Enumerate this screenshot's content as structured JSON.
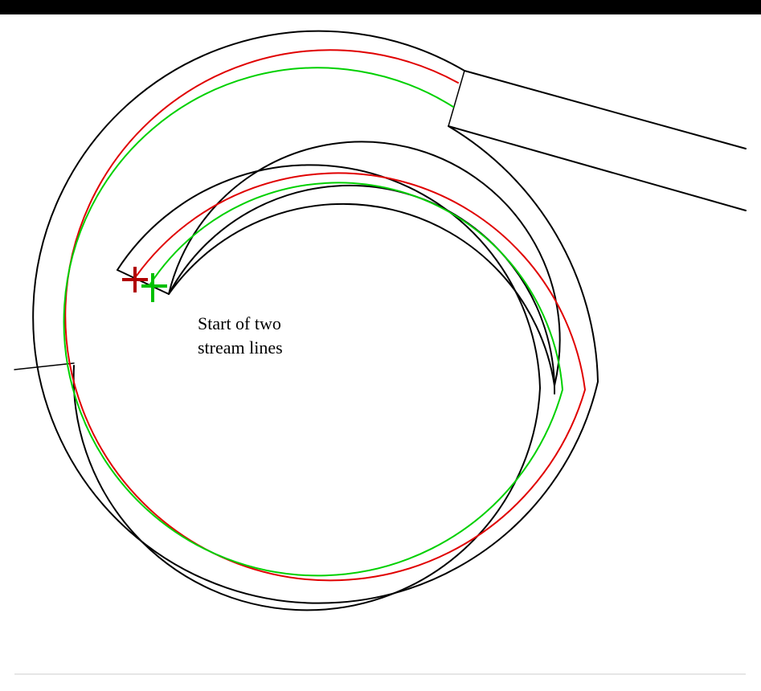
{
  "annotation": {
    "line1": "Start of two",
    "line2": "stream lines"
  },
  "colors": {
    "outline": "#000000",
    "streamline_outer": "#e00000",
    "streamline_inner": "#00d000",
    "marker_outer": "#b00000",
    "marker_inner": "#00c000",
    "background": "#ffffff"
  }
}
